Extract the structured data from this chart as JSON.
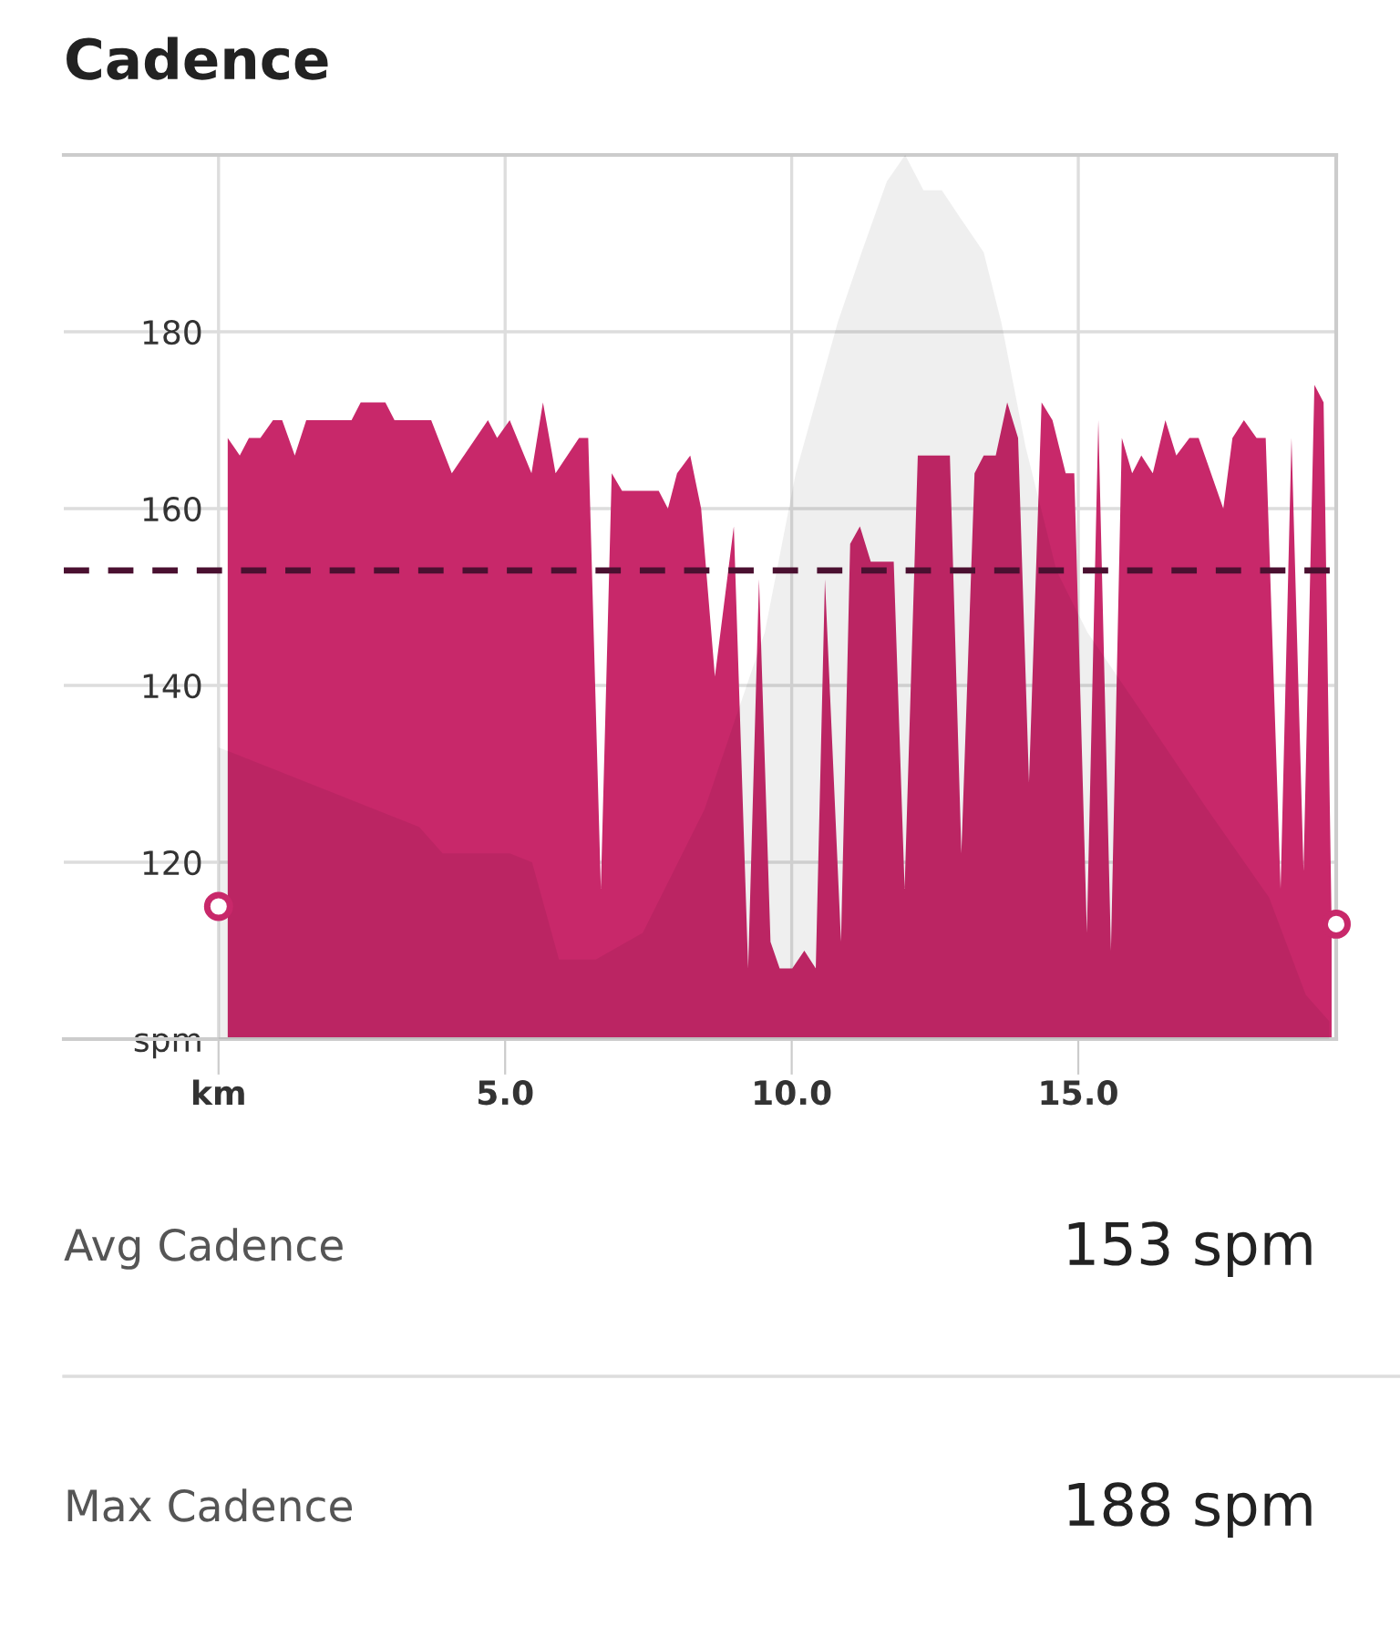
{
  "chart_data": {
    "type": "area",
    "title": "Cadence",
    "xlim": [
      -2.7,
      19.5
    ],
    "ylim": [
      100,
      200
    ],
    "xticks": [
      {
        "value": 0,
        "label": "km"
      },
      {
        "value": 5,
        "label": "5.0"
      },
      {
        "value": 10,
        "label": "10.0"
      },
      {
        "value": 15,
        "label": "15.0"
      }
    ],
    "yticks": [
      {
        "value": 100,
        "label": "spm"
      },
      120,
      140,
      160,
      180
    ],
    "grid": true,
    "legend": false,
    "series": [
      {
        "color": "#c8286a",
        "x": [
          0.16,
          0.37,
          0.53,
          0.73,
          0.95,
          1.11,
          1.33,
          1.53,
          2.32,
          2.48,
          2.91,
          3.07,
          3.71,
          4.07,
          4.7,
          4.86,
          5.08,
          5.46,
          5.66,
          5.88,
          6.29,
          6.45,
          6.67,
          6.86,
          7.04,
          7.68,
          7.84,
          8.0,
          8.23,
          8.42,
          8.66,
          8.99,
          9.24,
          9.43,
          9.63,
          9.79,
          10.01,
          10.22,
          10.42,
          10.58,
          10.86,
          11.02,
          11.19,
          11.38,
          11.78,
          11.97,
          12.2,
          12.76,
          12.96,
          13.19,
          13.35,
          13.56,
          13.76,
          13.95,
          14.14,
          14.36,
          14.55,
          14.78,
          14.93,
          15.15,
          15.35,
          15.57,
          15.76,
          15.94,
          16.1,
          16.3,
          16.52,
          16.71,
          16.94,
          17.1,
          17.53,
          17.69,
          17.89,
          18.11,
          18.27,
          18.53,
          18.72,
          18.93,
          19.12,
          19.28,
          19.42
        ],
        "values": [
          168,
          166,
          168,
          168,
          170,
          170,
          166,
          170,
          170,
          172,
          172,
          170,
          170,
          164,
          170,
          168,
          170,
          164,
          172,
          164,
          168,
          168,
          117,
          164,
          162,
          162,
          160,
          164,
          166,
          160,
          141,
          158,
          108,
          152,
          111,
          108,
          108,
          110,
          108,
          152,
          111,
          156,
          158,
          154,
          154,
          117,
          166,
          166,
          121,
          164,
          166,
          166,
          172,
          168,
          129,
          172,
          170,
          164,
          164,
          112,
          170,
          110,
          168,
          164,
          166,
          164,
          170,
          166,
          168,
          168,
          160,
          168,
          170,
          168,
          168,
          117,
          168,
          119,
          174,
          172,
          113
        ]
      },
      {
        "type": "area",
        "color": "#efefef",
        "x": [
          0,
          3.5,
          3.91,
          5.08,
          5.47,
          5.94,
          6.58,
          7.4,
          8.48,
          9.53,
          10.07,
          10.8,
          11.22,
          11.66,
          11.98,
          12.3,
          12.62,
          12.93,
          13.35,
          13.66,
          14.08,
          14.62,
          15.16,
          16.21,
          17.25,
          18.33,
          18.97,
          19.38
        ],
        "values": [
          133,
          124,
          121,
          121,
          120,
          109,
          109,
          112,
          126,
          146,
          164,
          181,
          189,
          197,
          200,
          196,
          196,
          193,
          189,
          181,
          167,
          153,
          146,
          136,
          126,
          116,
          105,
          102
        ]
      },
      {
        "type": "scatter",
        "color": "#c8286a",
        "marker": "circle",
        "x": [
          0,
          19.5
        ],
        "values": [
          115,
          113
        ]
      }
    ],
    "ref_lines": [
      {
        "axis": "y",
        "value": 153,
        "color": "#4a1030",
        "line_style": "dashed"
      }
    ],
    "annotations": [
      "Avg Cadence",
      "153 spm",
      "Max Cadence",
      "188 spm"
    ]
  }
}
